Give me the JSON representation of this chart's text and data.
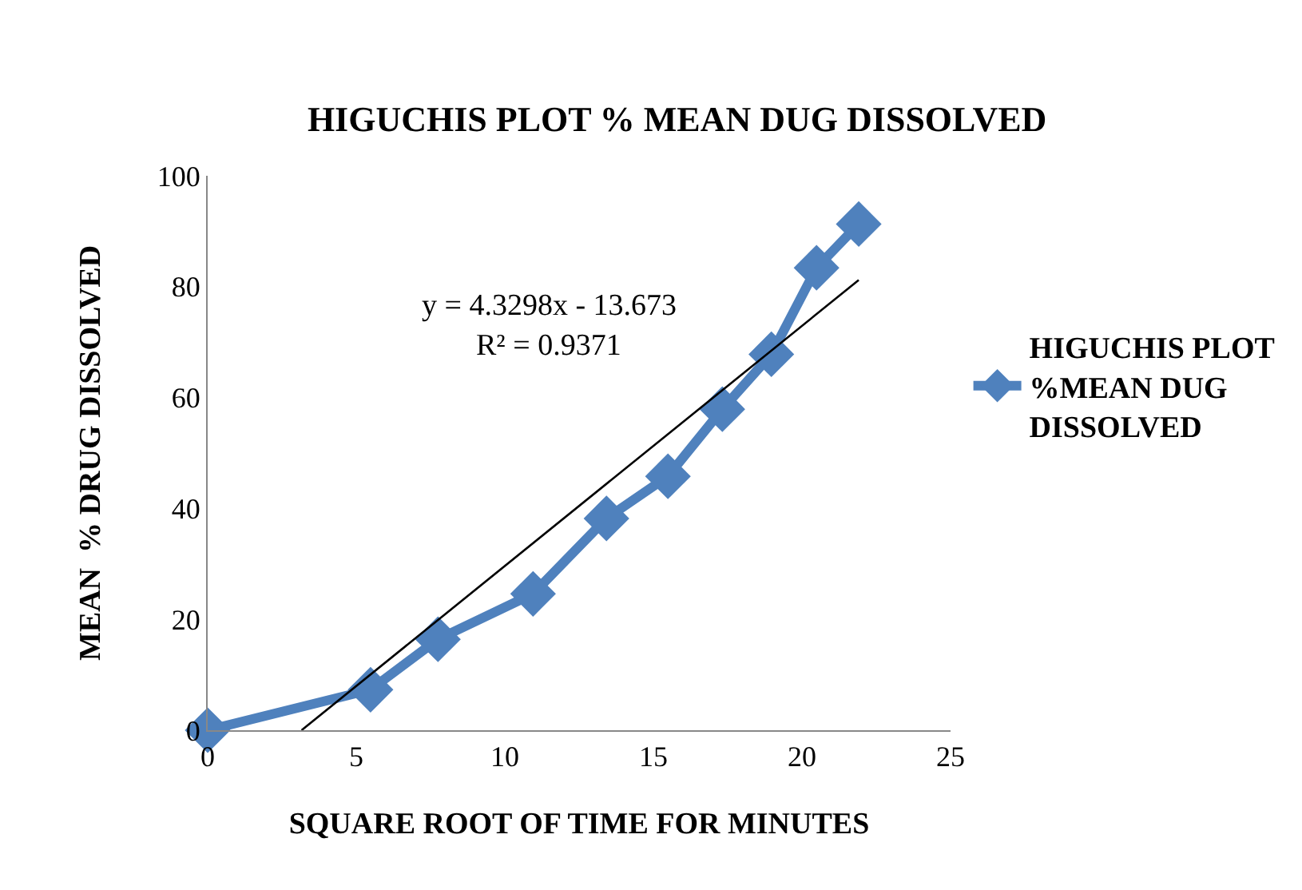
{
  "chart_data": {
    "type": "line",
    "title": "HIGUCHIS PLOT % MEAN DUG DISSOLVED",
    "xlabel": "SQUARE ROOT OF TIME FOR MINUTES",
    "ylabel": "MEAN  % DRUG DISSOLVED",
    "x": [
      0,
      5.48,
      7.75,
      10.95,
      13.42,
      15.49,
      17.32,
      18.97,
      20.49,
      21.91
    ],
    "series": [
      {
        "name": "HIGUCHIS PLOT %MEAN DUG DISSOLVED",
        "color": "#4f81bd",
        "values": [
          0,
          7.3,
          16.4,
          24.6,
          38.2,
          45.8,
          57.9,
          67.8,
          83.4,
          91.3
        ],
        "marker": "diamond"
      },
      {
        "type": "line",
        "color": "#000000",
        "x": [
          3.16,
          21.91
        ],
        "values": [
          0,
          81.2
        ],
        "marker": "none"
      }
    ],
    "annotations": [
      "y = 4.3298x - 13.673",
      "R² = 0.9371"
    ],
    "xlim": [
      0,
      25
    ],
    "xticks": [
      0,
      5,
      10,
      15,
      20,
      25
    ],
    "ylim": [
      0,
      100
    ],
    "yticks": [
      0,
      20,
      40,
      60,
      80,
      100
    ],
    "grid": false,
    "legend": "right"
  }
}
